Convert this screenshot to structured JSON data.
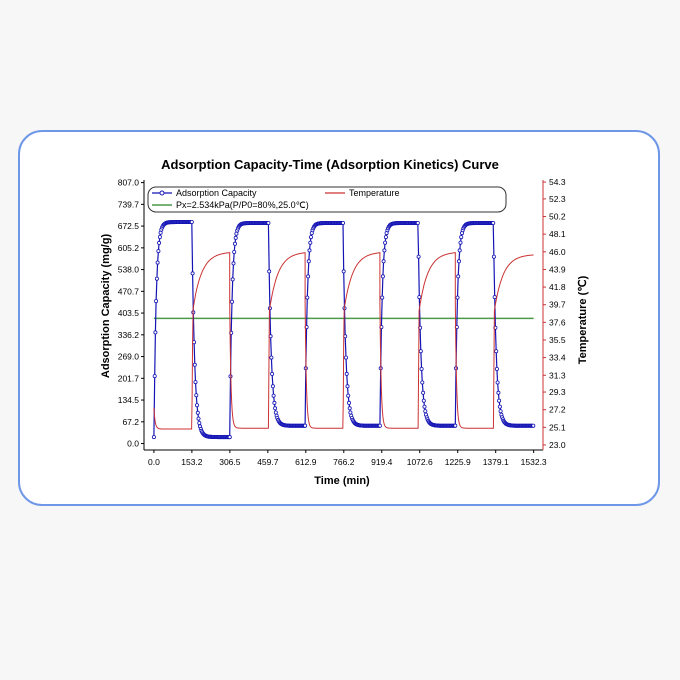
{
  "chart_data": {
    "type": "line",
    "title": "Adsorption Capacity-Time (Adsorption Kinetics) Curve",
    "xlabel": "Time (min)",
    "ylabel": "Adsorption Capacity (mg/g)",
    "y2label": "Temperature (℃)",
    "xlim": [
      -40,
      1570
    ],
    "ylim": [
      -20,
      815
    ],
    "y2lim": [
      22.4,
      54.55
    ],
    "x_ticks": [
      "0.0",
      "153.2",
      "306.5",
      "459.7",
      "612.9",
      "766.2",
      "919.4",
      "1072.6",
      "1225.9",
      "1379.1",
      "1532.3"
    ],
    "y_ticks": [
      "0.0",
      "67.2",
      "134.5",
      "201.7",
      "269.0",
      "336.2",
      "403.5",
      "470.7",
      "538.0",
      "605.2",
      "672.5",
      "739.7",
      "807.0"
    ],
    "y2_ticks": [
      "23.0",
      "25.1",
      "27.2",
      "29.3",
      "31.3",
      "33.4",
      "35.5",
      "37.6",
      "39.7",
      "41.8",
      "43.9",
      "46.0",
      "48.1",
      "50.2",
      "52.3",
      "54.3"
    ],
    "grid": false,
    "legend_position": "top",
    "legend": {
      "adsorption": "Adsorption Capacity",
      "temperature": "Temperature",
      "pressure": "Px=2.534kPa(P/P0=80%,25.0℃)"
    },
    "colors": {
      "adsorption": "#1515b5",
      "temperature": "#cc3333",
      "pressure": "#4a9a4a",
      "axis_right": "#cc3333"
    },
    "pressure_line_value": 387,
    "series": [
      {
        "name": "Adsorption Capacity",
        "axis": "left",
        "cycles": [
          {
            "start": 0,
            "desorb_start": 153,
            "end": 306,
            "low": 20,
            "high": 685
          },
          {
            "start": 306,
            "desorb_start": 462,
            "end": 610,
            "low": 55,
            "high": 682
          },
          {
            "start": 610,
            "desorb_start": 763,
            "end": 912,
            "low": 55,
            "high": 682
          },
          {
            "start": 912,
            "desorb_start": 1066,
            "end": 1216,
            "low": 55,
            "high": 682
          },
          {
            "start": 1216,
            "desorb_start": 1370,
            "end": 1532,
            "low": 55,
            "high": 682
          }
        ]
      },
      {
        "name": "Temperature",
        "axis": "right",
        "cycles": [
          {
            "start": 0,
            "heat_start": 153,
            "end": 306,
            "low": 24.9,
            "high": 46.0
          },
          {
            "start": 306,
            "heat_start": 462,
            "end": 610,
            "low": 25.0,
            "high": 46.0
          },
          {
            "start": 610,
            "heat_start": 763,
            "end": 912,
            "low": 25.0,
            "high": 46.0
          },
          {
            "start": 912,
            "heat_start": 1066,
            "end": 1216,
            "low": 25.0,
            "high": 46.0
          },
          {
            "start": 1216,
            "heat_start": 1370,
            "end": 1532,
            "low": 25.0,
            "high": 45.7
          }
        ]
      }
    ]
  }
}
